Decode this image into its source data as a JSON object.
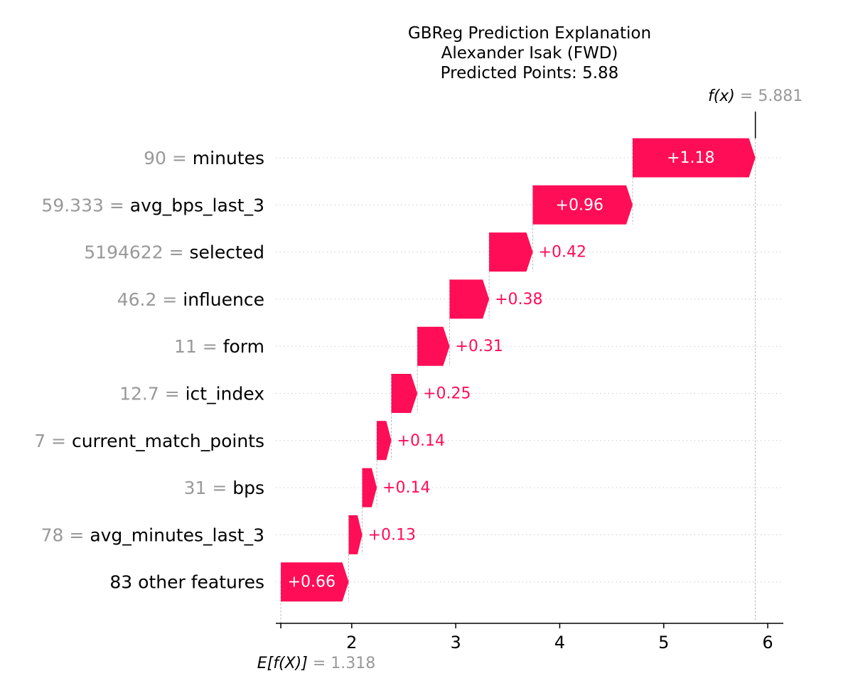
{
  "chart_data": {
    "type": "waterfall",
    "title_lines": [
      "GBReg Prediction Explanation",
      "Alexander Isak (FWD)",
      "Predicted Points: 5.88"
    ],
    "fx": {
      "label": "f(x)",
      "value_text": "5.881",
      "value": 5.881
    },
    "base": {
      "label": "E[f(X)]",
      "value_text": "1.318",
      "value": 1.318
    },
    "xticks": [
      2,
      3,
      4,
      5,
      6
    ],
    "xlim": [
      1.27,
      6.15
    ],
    "positive_color": "#ff0d57",
    "features": [
      {
        "value": "90",
        "name": "minutes",
        "contribution": "+1.18",
        "start": 4.701,
        "end": 5.881
      },
      {
        "value": "59.333",
        "name": "avg_bps_last_3",
        "contribution": "+0.96",
        "start": 3.741,
        "end": 4.701
      },
      {
        "value": "5194622",
        "name": "selected",
        "contribution": "+0.42",
        "start": 3.321,
        "end": 3.741
      },
      {
        "value": "46.2",
        "name": "influence",
        "contribution": "+0.38",
        "start": 2.941,
        "end": 3.321
      },
      {
        "value": "11",
        "name": "form",
        "contribution": "+0.31",
        "start": 2.631,
        "end": 2.941
      },
      {
        "value": "12.7",
        "name": "ict_index",
        "contribution": "+0.25",
        "start": 2.381,
        "end": 2.631
      },
      {
        "value": "7",
        "name": "current_match_points",
        "contribution": "+0.14",
        "start": 2.241,
        "end": 2.381
      },
      {
        "value": "31",
        "name": "bps",
        "contribution": "+0.14",
        "start": 2.101,
        "end": 2.241
      },
      {
        "value": "78",
        "name": "avg_minutes_last_3",
        "contribution": "+0.13",
        "start": 1.971,
        "end": 2.101
      },
      {
        "value": "",
        "name": "83 other features",
        "contribution": "+0.66",
        "start": 1.318,
        "end": 1.971
      }
    ]
  }
}
